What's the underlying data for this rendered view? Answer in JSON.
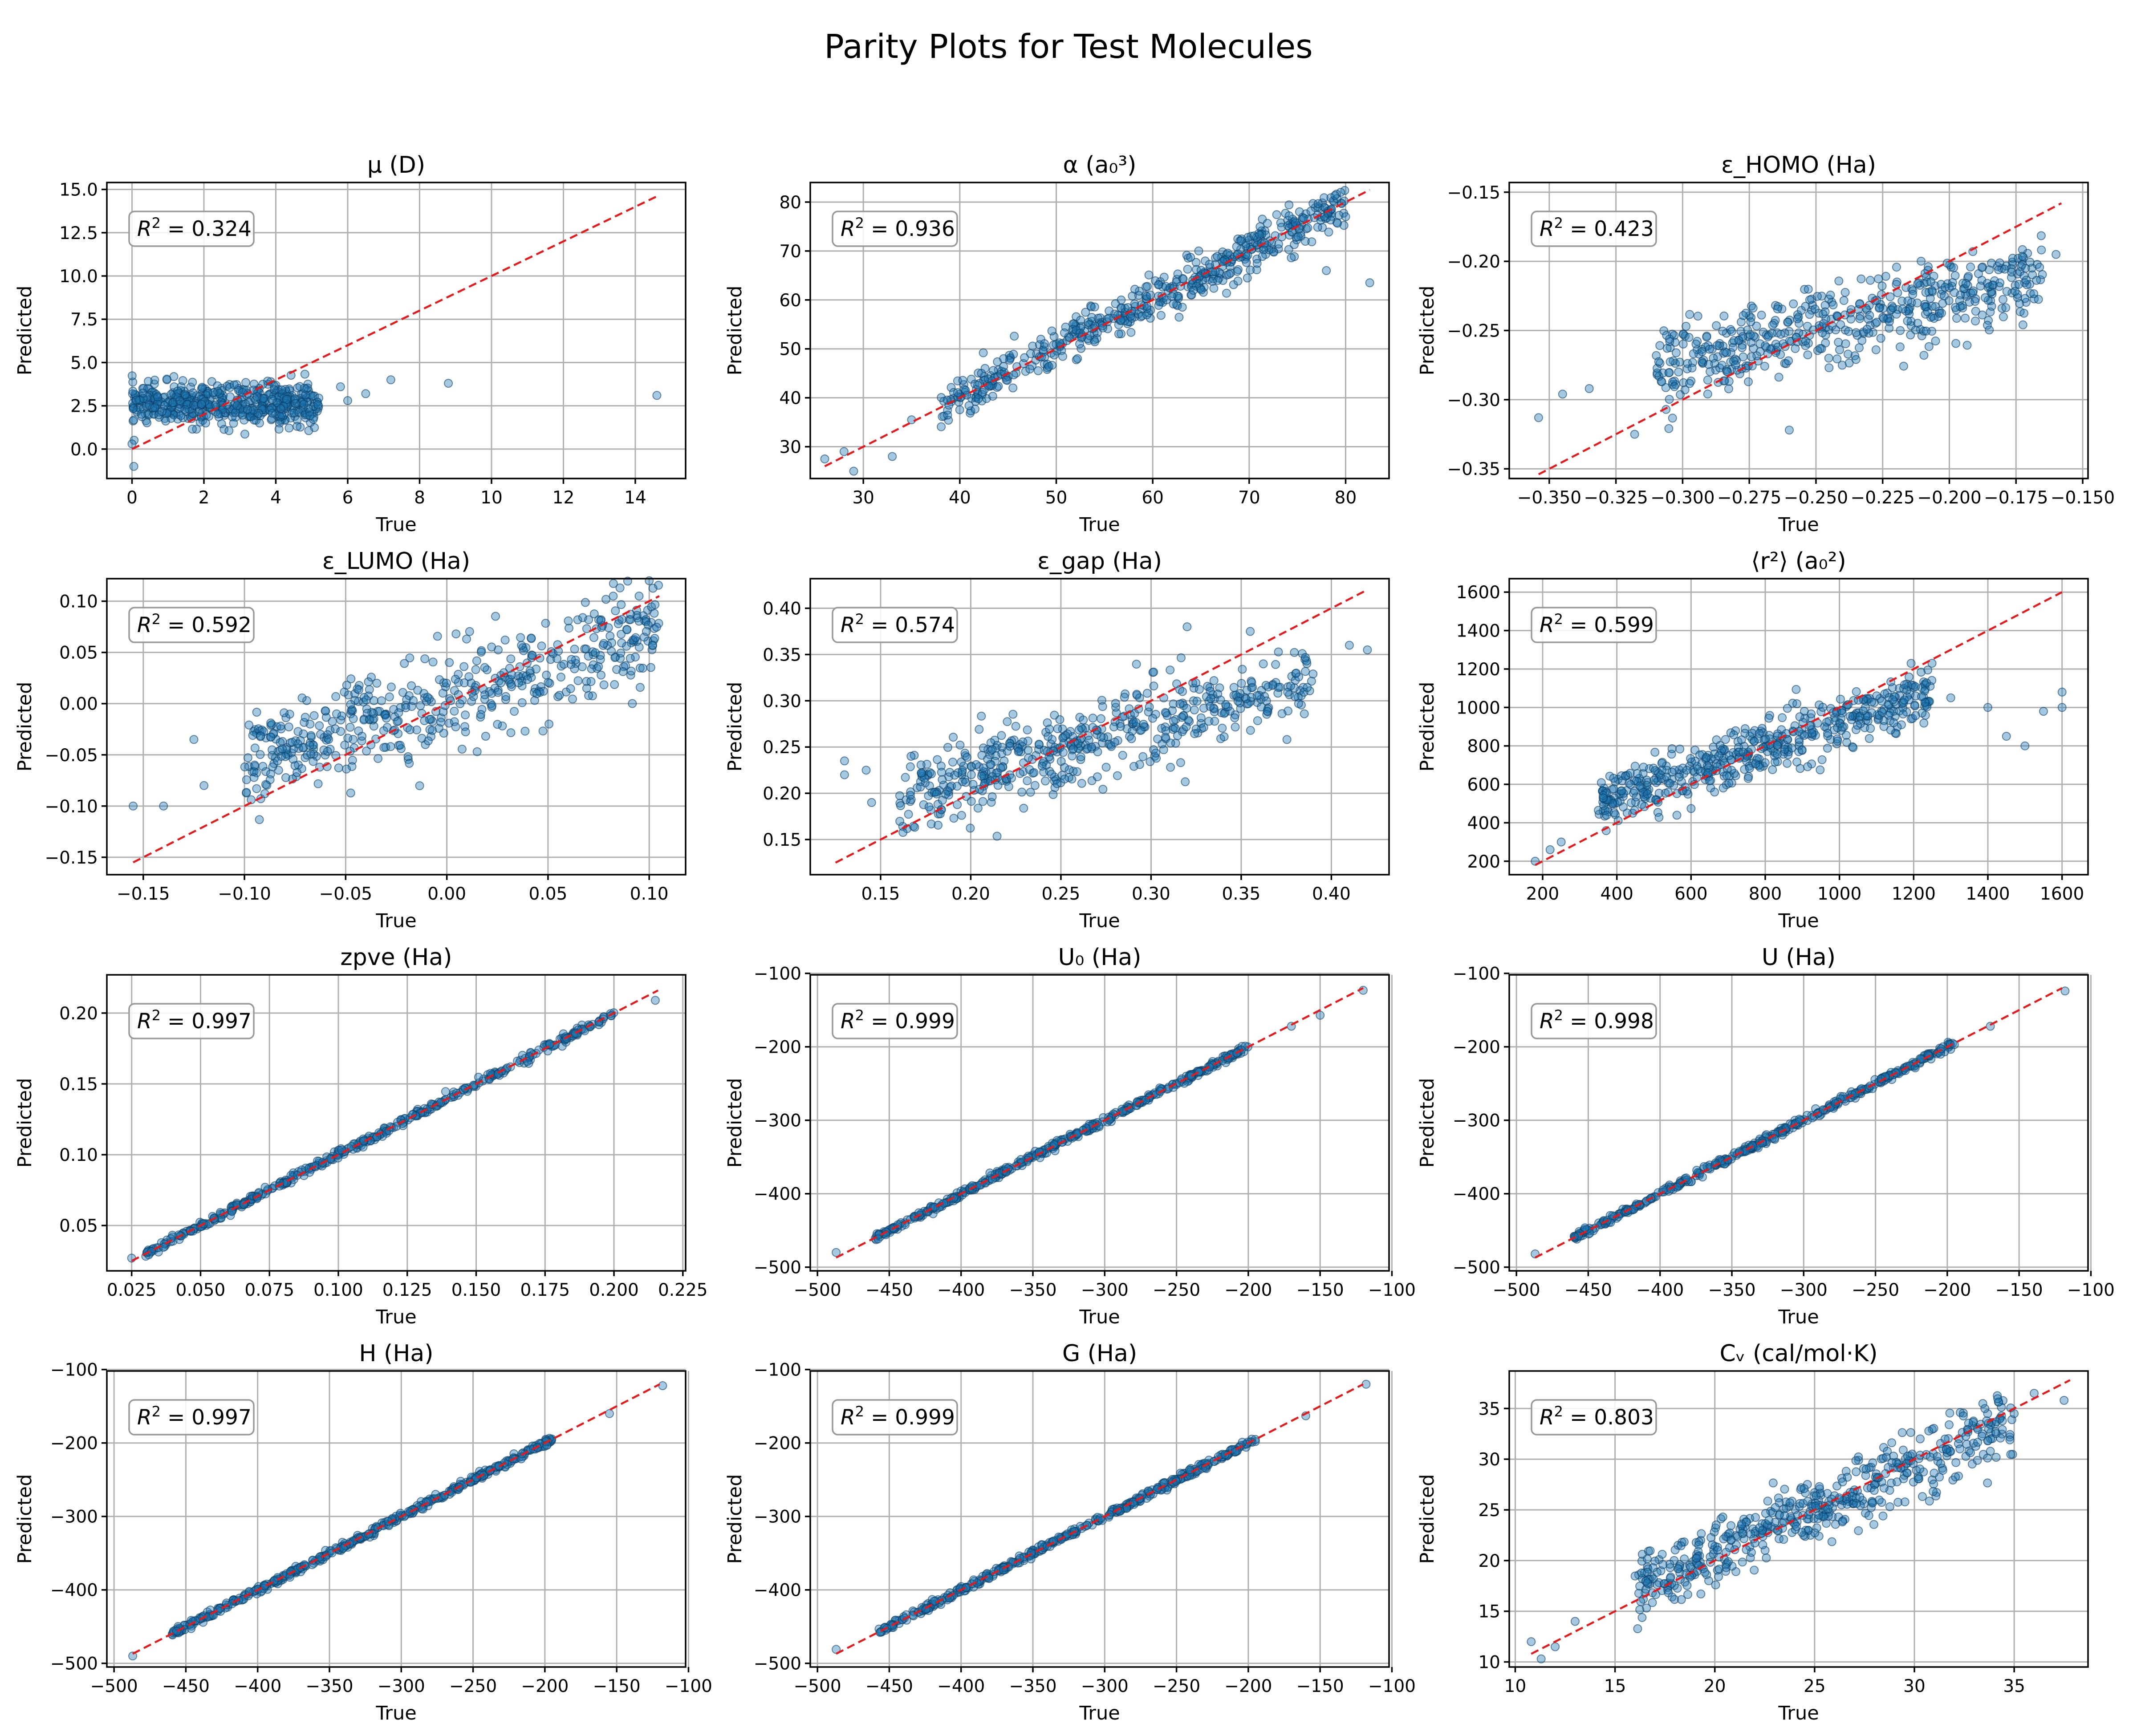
{
  "figure": {
    "title": "Parity Plots for Test Molecules"
  },
  "colors": {
    "points": "#1f77b4",
    "point_edge": "#0b3d66",
    "parity_line": "#e41a1c",
    "grid": "#b0b0b0"
  },
  "chart_data": [
    {
      "type": "scatter",
      "title": "μ (D)",
      "xlabel": "True",
      "ylabel": "Predicted",
      "r2": "0.324",
      "xlim": [
        -0.7,
        15.4
      ],
      "ylim": [
        -1.7,
        15.4
      ],
      "xticks": [
        0,
        2,
        4,
        6,
        8,
        10,
        12,
        14
      ],
      "yticks": [
        0.0,
        2.5,
        5.0,
        7.5,
        10.0,
        12.5,
        15.0
      ],
      "xtick_labels": [
        "0",
        "2",
        "4",
        "6",
        "8",
        "10",
        "12",
        "14"
      ],
      "ytick_labels": [
        "0.0",
        "2.5",
        "5.0",
        "7.5",
        "10.0",
        "12.5",
        "15.0"
      ],
      "parity": [
        0,
        14.6
      ],
      "grid": true,
      "cloud": {
        "x_range": [
          0,
          5.2
        ],
        "y_mode": "flat",
        "y_center": 2.6,
        "y_spread": 0.6,
        "n": 520
      },
      "outliers": [
        [
          5.8,
          3.6
        ],
        [
          6.5,
          3.2
        ],
        [
          7.2,
          4.0
        ],
        [
          8.8,
          3.8
        ],
        [
          14.6,
          3.1
        ],
        [
          6.0,
          2.8
        ],
        [
          0.05,
          -1.0
        ],
        [
          0.0,
          0.3
        ]
      ]
    },
    {
      "type": "scatter",
      "title": "α (a₀³)",
      "xlabel": "True",
      "ylabel": "Predicted",
      "r2": "0.936",
      "xlim": [
        24.5,
        84.5
      ],
      "ylim": [
        23.5,
        84
      ],
      "xticks": [
        30,
        40,
        50,
        60,
        70,
        80
      ],
      "yticks": [
        30,
        40,
        50,
        60,
        70,
        80
      ],
      "xtick_labels": [
        "30",
        "40",
        "50",
        "60",
        "70",
        "80"
      ],
      "ytick_labels": [
        "30",
        "40",
        "50",
        "60",
        "70",
        "80"
      ],
      "parity": [
        26,
        82.5
      ],
      "grid": true,
      "cloud": {
        "x_range": [
          38,
          80
        ],
        "y_mode": "linear",
        "slope": 1.0,
        "intercept": 0,
        "y_spread": 2.2,
        "n": 520
      },
      "outliers": [
        [
          26,
          27.5
        ],
        [
          28,
          29
        ],
        [
          29,
          25
        ],
        [
          33,
          28
        ],
        [
          35,
          35.5
        ],
        [
          82.5,
          63.5
        ],
        [
          80,
          77
        ],
        [
          78,
          66
        ]
      ]
    },
    {
      "type": "scatter",
      "title": "ε_HOMO (Ha)",
      "xlabel": "True",
      "ylabel": "Predicted",
      "r2": "0.423",
      "xlim": [
        -0.365,
        -0.148
      ],
      "ylim": [
        -0.357,
        -0.143
      ],
      "xticks": [
        -0.35,
        -0.325,
        -0.3,
        -0.275,
        -0.25,
        -0.225,
        -0.2,
        -0.175,
        -0.15
      ],
      "yticks": [
        -0.35,
        -0.3,
        -0.25,
        -0.2,
        -0.15
      ],
      "xtick_labels": [
        "−0.350",
        "−0.325",
        "−0.300",
        "−0.275",
        "−0.250",
        "−0.225",
        "−0.200",
        "−0.175",
        "−0.150"
      ],
      "ytick_labels": [
        "−0.35",
        "−0.30",
        "−0.25",
        "−0.20",
        "−0.15"
      ],
      "parity": [
        -0.354,
        -0.158
      ],
      "grid": true,
      "cloud": {
        "x_range": [
          -0.31,
          -0.165
        ],
        "y_mode": "linear",
        "slope": 0.45,
        "intercept": -0.137,
        "y_spread": 0.014,
        "n": 520
      },
      "outliers": [
        [
          -0.354,
          -0.313
        ],
        [
          -0.345,
          -0.296
        ],
        [
          -0.335,
          -0.292
        ],
        [
          -0.318,
          -0.325
        ],
        [
          -0.26,
          -0.322
        ],
        [
          -0.16,
          -0.195
        ]
      ]
    },
    {
      "type": "scatter",
      "title": "ε_LUMO (Ha)",
      "xlabel": "True",
      "ylabel": "Predicted",
      "r2": "0.592",
      "xlim": [
        -0.168,
        0.118
      ],
      "ylim": [
        -0.167,
        0.122
      ],
      "xticks": [
        -0.15,
        -0.1,
        -0.05,
        0.0,
        0.05,
        0.1
      ],
      "yticks": [
        -0.15,
        -0.1,
        -0.05,
        0.0,
        0.05,
        0.1
      ],
      "xtick_labels": [
        "−0.15",
        "−0.10",
        "−0.05",
        "0.00",
        "0.05",
        "0.10"
      ],
      "ytick_labels": [
        "−0.15",
        "−0.10",
        "−0.05",
        "0.00",
        "0.05",
        "0.10"
      ],
      "parity": [
        -0.155,
        0.105
      ],
      "grid": true,
      "cloud": {
        "x_range": [
          -0.1,
          0.105
        ],
        "y_mode": "linear",
        "slope": 0.6,
        "intercept": 0.003,
        "y_spread": 0.025,
        "n": 520
      },
      "outliers": [
        [
          -0.155,
          -0.1
        ],
        [
          -0.14,
          -0.1
        ],
        [
          -0.125,
          -0.035
        ],
        [
          -0.12,
          -0.08
        ],
        [
          0.1,
          0.12
        ],
        [
          0.095,
          0.105
        ]
      ]
    },
    {
      "type": "scatter",
      "title": "ε_gap (Ha)",
      "xlabel": "True",
      "ylabel": "Predicted",
      "r2": "0.574",
      "xlim": [
        0.111,
        0.432
      ],
      "ylim": [
        0.112,
        0.432
      ],
      "xticks": [
        0.15,
        0.2,
        0.25,
        0.3,
        0.35,
        0.4
      ],
      "yticks": [
        0.15,
        0.2,
        0.25,
        0.3,
        0.35,
        0.4
      ],
      "xtick_labels": [
        "0.15",
        "0.20",
        "0.25",
        "0.30",
        "0.35",
        "0.40"
      ],
      "ytick_labels": [
        "0.15",
        "0.20",
        "0.25",
        "0.30",
        "0.35",
        "0.40"
      ],
      "parity": [
        0.125,
        0.42
      ],
      "grid": true,
      "cloud": {
        "x_range": [
          0.16,
          0.39
        ],
        "y_mode": "linear",
        "slope": 0.55,
        "intercept": 0.11,
        "y_spread": 0.022,
        "n": 520
      },
      "outliers": [
        [
          0.13,
          0.235
        ],
        [
          0.13,
          0.22
        ],
        [
          0.142,
          0.225
        ],
        [
          0.145,
          0.19
        ],
        [
          0.41,
          0.36
        ],
        [
          0.42,
          0.355
        ],
        [
          0.355,
          0.375
        ],
        [
          0.32,
          0.38
        ]
      ]
    },
    {
      "type": "scatter",
      "title": "⟨r²⟩ (a₀²)",
      "xlabel": "True",
      "ylabel": "Predicted",
      "r2": "0.599",
      "xlim": [
        110,
        1670
      ],
      "ylim": [
        130,
        1670
      ],
      "xticks": [
        200,
        400,
        600,
        800,
        1000,
        1200,
        1400,
        1600
      ],
      "yticks": [
        200,
        400,
        600,
        800,
        1000,
        1200,
        1400,
        1600
      ],
      "xtick_labels": [
        "200",
        "400",
        "600",
        "800",
        "1000",
        "1200",
        "1400",
        "1600"
      ],
      "ytick_labels": [
        "200",
        "400",
        "600",
        "800",
        "1000",
        "1200",
        "1400",
        "1600"
      ],
      "parity": [
        180,
        1600
      ],
      "grid": true,
      "cloud": {
        "x_range": [
          350,
          1250
        ],
        "y_mode": "linear",
        "slope": 0.65,
        "intercept": 270,
        "y_spread": 70,
        "n": 520
      },
      "outliers": [
        [
          180,
          200
        ],
        [
          220,
          260
        ],
        [
          250,
          300
        ],
        [
          1400,
          1000
        ],
        [
          1450,
          850
        ],
        [
          1500,
          800
        ],
        [
          1550,
          980
        ],
        [
          1600,
          1080
        ],
        [
          1300,
          1050
        ],
        [
          1600,
          1000
        ]
      ]
    },
    {
      "type": "scatter",
      "title": "zpve (Ha)",
      "xlabel": "True",
      "ylabel": "Predicted",
      "r2": "0.997",
      "xlim": [
        0.016,
        0.226
      ],
      "ylim": [
        0.018,
        0.227
      ],
      "xticks": [
        0.025,
        0.05,
        0.075,
        0.1,
        0.125,
        0.15,
        0.175,
        0.2,
        0.225
      ],
      "yticks": [
        0.05,
        0.1,
        0.15,
        0.2
      ],
      "xtick_labels": [
        "0.025",
        "0.050",
        "0.075",
        "0.100",
        "0.125",
        "0.150",
        "0.175",
        "0.200",
        "0.225"
      ],
      "ytick_labels": [
        "0.05",
        "0.10",
        "0.15",
        "0.20"
      ],
      "parity": [
        0.025,
        0.216
      ],
      "grid": true,
      "cloud": {
        "x_range": [
          0.03,
          0.2
        ],
        "y_mode": "linear",
        "slope": 1.0,
        "intercept": 0,
        "y_spread": 0.0015,
        "n": 420
      },
      "outliers": [
        [
          0.025,
          0.027
        ],
        [
          0.215,
          0.209
        ]
      ]
    },
    {
      "type": "scatter",
      "title": "U₀ (Ha)",
      "xlabel": "True",
      "ylabel": "Predicted",
      "r2": "0.999",
      "xlim": [
        -505,
        -102
      ],
      "ylim": [
        -505,
        -102
      ],
      "xticks": [
        -500,
        -450,
        -400,
        -350,
        -300,
        -250,
        -200,
        -150,
        -100
      ],
      "yticks": [
        -500,
        -400,
        -300,
        -200,
        -100
      ],
      "xtick_labels": [
        "−500",
        "−450",
        "−400",
        "−350",
        "−300",
        "−250",
        "−200",
        "−150",
        "−100"
      ],
      "ytick_labels": [
        "−500",
        "−400",
        "−300",
        "−200",
        "−100"
      ],
      "parity": [
        -487,
        -120
      ],
      "grid": true,
      "cloud": {
        "x_range": [
          -460,
          -200
        ],
        "y_mode": "linear",
        "slope": 1.0,
        "intercept": 0,
        "y_spread": 2.5,
        "n": 420
      },
      "outliers": [
        [
          -487,
          -480
        ],
        [
          -120,
          -123
        ],
        [
          -150,
          -157
        ],
        [
          -170,
          -172
        ]
      ]
    },
    {
      "type": "scatter",
      "title": "U (Ha)",
      "xlabel": "True",
      "ylabel": "Predicted",
      "r2": "0.998",
      "xlim": [
        -505,
        -102
      ],
      "ylim": [
        -505,
        -102
      ],
      "xticks": [
        -500,
        -450,
        -400,
        -350,
        -300,
        -250,
        -200,
        -150,
        -100
      ],
      "yticks": [
        -500,
        -400,
        -300,
        -200,
        -100
      ],
      "xtick_labels": [
        "−500",
        "−450",
        "−400",
        "−350",
        "−300",
        "−250",
        "−200",
        "−150",
        "−100"
      ],
      "ytick_labels": [
        "−500",
        "−400",
        "−300",
        "−200",
        "−100"
      ],
      "parity": [
        -487,
        -120
      ],
      "grid": true,
      "cloud": {
        "x_range": [
          -460,
          -195
        ],
        "y_mode": "linear",
        "slope": 1.0,
        "intercept": 0,
        "y_spread": 2.5,
        "n": 420
      },
      "outliers": [
        [
          -487,
          -482
        ],
        [
          -118,
          -124
        ],
        [
          -170,
          -172
        ]
      ]
    },
    {
      "type": "scatter",
      "title": "H (Ha)",
      "xlabel": "True",
      "ylabel": "Predicted",
      "r2": "0.997",
      "xlim": [
        -505,
        -102
      ],
      "ylim": [
        -505,
        -102
      ],
      "xticks": [
        -500,
        -450,
        -400,
        -350,
        -300,
        -250,
        -200,
        -150,
        -100
      ],
      "yticks": [
        -500,
        -400,
        -300,
        -200,
        -100
      ],
      "xtick_labels": [
        "−500",
        "−450",
        "−400",
        "−350",
        "−300",
        "−250",
        "−200",
        "−150",
        "−100"
      ],
      "ytick_labels": [
        "−500",
        "−400",
        "−300",
        "−200",
        "−100"
      ],
      "parity": [
        -487,
        -120
      ],
      "grid": true,
      "cloud": {
        "x_range": [
          -460,
          -195
        ],
        "y_mode": "linear",
        "slope": 1.0,
        "intercept": 0,
        "y_spread": 2.5,
        "n": 420
      },
      "outliers": [
        [
          -487,
          -490
        ],
        [
          -118,
          -122
        ],
        [
          -155,
          -160
        ]
      ]
    },
    {
      "type": "scatter",
      "title": "G (Ha)",
      "xlabel": "True",
      "ylabel": "Predicted",
      "r2": "0.999",
      "xlim": [
        -505,
        -102
      ],
      "ylim": [
        -505,
        -102
      ],
      "xticks": [
        -500,
        -450,
        -400,
        -350,
        -300,
        -250,
        -200,
        -150,
        -100
      ],
      "yticks": [
        -500,
        -400,
        -300,
        -200,
        -100
      ],
      "xtick_labels": [
        "−500",
        "−450",
        "−400",
        "−350",
        "−300",
        "−250",
        "−200",
        "−150",
        "−100"
      ],
      "ytick_labels": [
        "−500",
        "−400",
        "−300",
        "−200",
        "−100"
      ],
      "parity": [
        -487,
        -120
      ],
      "grid": true,
      "cloud": {
        "x_range": [
          -460,
          -195
        ],
        "y_mode": "linear",
        "slope": 1.0,
        "intercept": 0,
        "y_spread": 2.5,
        "n": 420
      },
      "outliers": [
        [
          -487,
          -481
        ],
        [
          -118,
          -120
        ],
        [
          -160,
          -163
        ]
      ]
    },
    {
      "type": "scatter",
      "title": "Cᵥ (cal/mol·K)",
      "xlabel": "True",
      "ylabel": "Predicted",
      "r2": "0.803",
      "xlim": [
        9.7,
        38.7
      ],
      "ylim": [
        9.5,
        38.7
      ],
      "xticks": [
        10,
        15,
        20,
        25,
        30,
        35
      ],
      "yticks": [
        10,
        15,
        20,
        25,
        30,
        35
      ],
      "xtick_labels": [
        "10",
        "15",
        "20",
        "25",
        "30",
        "35"
      ],
      "ytick_labels": [
        "10",
        "15",
        "20",
        "25",
        "30",
        "35"
      ],
      "parity": [
        10.8,
        37.8
      ],
      "grid": true,
      "cloud": {
        "x_range": [
          16,
          35
        ],
        "y_mode": "linear",
        "slope": 0.85,
        "intercept": 3.7,
        "y_spread": 1.6,
        "n": 520
      },
      "outliers": [
        [
          10.8,
          12.0
        ],
        [
          11.3,
          10.3
        ],
        [
          12.0,
          11.5
        ],
        [
          13.0,
          14.0
        ],
        [
          37.5,
          35.8
        ],
        [
          36.0,
          36.5
        ],
        [
          35.0,
          34.5
        ]
      ]
    }
  ]
}
